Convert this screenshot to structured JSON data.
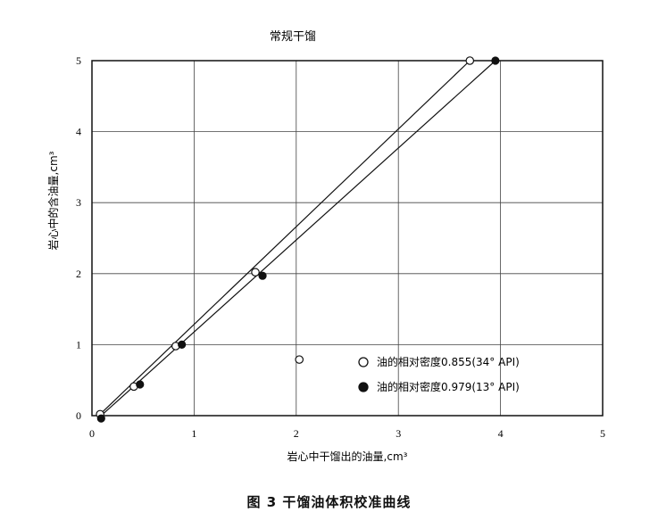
{
  "chart_data": {
    "type": "scatter",
    "title": "常规干馏",
    "xlabel": "岩心中干馏出的油量,cm³",
    "ylabel": "岩心中的含油量,cm³",
    "xlim": [
      0,
      5
    ],
    "ylim": [
      0,
      5
    ],
    "x_ticks": [
      "0",
      "1",
      "2",
      "3",
      "4",
      "5"
    ],
    "y_ticks": [
      "0",
      "1",
      "2",
      "3",
      "4",
      "5"
    ],
    "grid": true,
    "legend_position": "bottom-right",
    "series": [
      {
        "name": "油的相对密度0.855(34° API)",
        "marker": "open-circle",
        "points": [
          [
            0.08,
            0.02
          ],
          [
            0.41,
            0.41
          ],
          [
            0.82,
            0.98
          ],
          [
            1.6,
            2.02
          ],
          [
            2.03,
            0.79
          ],
          [
            3.7,
            5.0
          ]
        ],
        "fit_line": [
          [
            0.08,
            0.02
          ],
          [
            3.7,
            5.0
          ]
        ]
      },
      {
        "name": "油的相对密度0.979(13° API)",
        "marker": "filled-circle",
        "points": [
          [
            0.09,
            -0.04
          ],
          [
            0.47,
            0.44
          ],
          [
            0.88,
            1.0
          ],
          [
            1.67,
            1.97
          ],
          [
            3.95,
            5.0
          ]
        ],
        "fit_line": [
          [
            0.09,
            0.0
          ],
          [
            3.95,
            5.0
          ]
        ]
      }
    ]
  },
  "caption": "图 3   干馏油体积校准曲线",
  "colors": {
    "ink": "#111111",
    "grid": "#444444",
    "background": "#ffffff"
  }
}
